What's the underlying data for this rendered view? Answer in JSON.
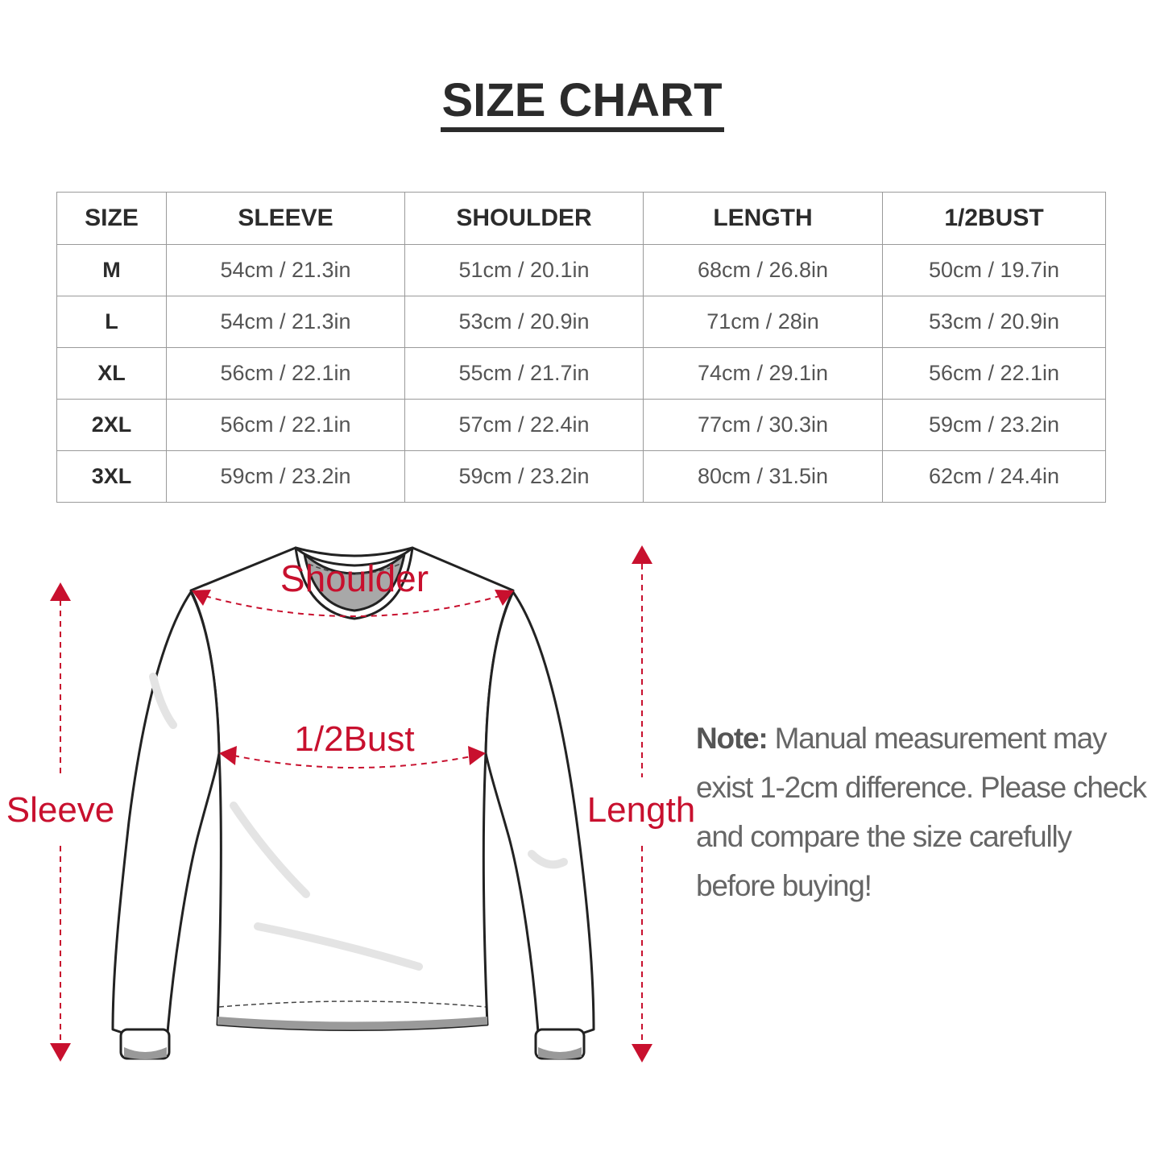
{
  "title": "SIZE CHART",
  "table": {
    "headers": [
      "SIZE",
      "SLEEVE",
      "SHOULDER",
      "LENGTH",
      "1/2BUST"
    ],
    "rows": [
      [
        "M",
        "54cm / 21.3in",
        "51cm / 20.1in",
        "68cm / 26.8in",
        "50cm / 19.7in"
      ],
      [
        "L",
        "54cm / 21.3in",
        "53cm / 20.9in",
        "71cm / 28in",
        "53cm / 20.9in"
      ],
      [
        "XL",
        "56cm / 22.1in",
        "55cm / 21.7in",
        "74cm / 29.1in",
        "56cm / 22.1in"
      ],
      [
        "2XL",
        "56cm / 22.1in",
        "57cm / 22.4in",
        "77cm / 30.3in",
        "59cm / 23.2in"
      ],
      [
        "3XL",
        "59cm / 23.2in",
        "59cm / 23.2in",
        "80cm / 31.5in",
        "62cm / 24.4in"
      ]
    ]
  },
  "diagram": {
    "labels": {
      "shoulder": "Shoulder",
      "bust": "1/2Bust",
      "sleeve": "Sleeve",
      "length": "Length"
    },
    "accent_color": "#c8102e"
  },
  "note": {
    "prefix": "Note:",
    "text": " Manual measurement may exist 1-2cm difference. Please check and compare the size carefully before buying!"
  }
}
